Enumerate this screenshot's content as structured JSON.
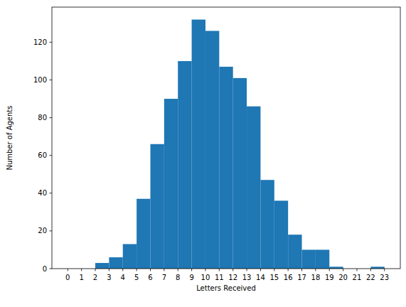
{
  "chart_data": {
    "type": "histogram",
    "x_label": "Letters Received",
    "y_label": "Number of Agents",
    "bins": [
      0,
      1,
      2,
      3,
      4,
      5,
      6,
      7,
      8,
      9,
      10,
      11,
      12,
      13,
      14,
      15,
      16,
      17,
      18,
      19,
      20,
      21,
      22,
      23
    ],
    "values": [
      0,
      0,
      3,
      6,
      13,
      37,
      66,
      90,
      110,
      132,
      126,
      107,
      101,
      86,
      47,
      36,
      18,
      10,
      10,
      1,
      0,
      0,
      1
    ],
    "color": "#1f77b4",
    "xlim": [
      -1.15,
      24.15
    ],
    "xticks": [
      0,
      1,
      2,
      3,
      4,
      5,
      6,
      7,
      8,
      9,
      10,
      11,
      12,
      13,
      14,
      15,
      16,
      17,
      18,
      19,
      20,
      21,
      22,
      23
    ],
    "ylim": [
      0,
      138.6
    ],
    "yticks": [
      0,
      20,
      40,
      60,
      80,
      100,
      120
    ],
    "grid": false
  }
}
